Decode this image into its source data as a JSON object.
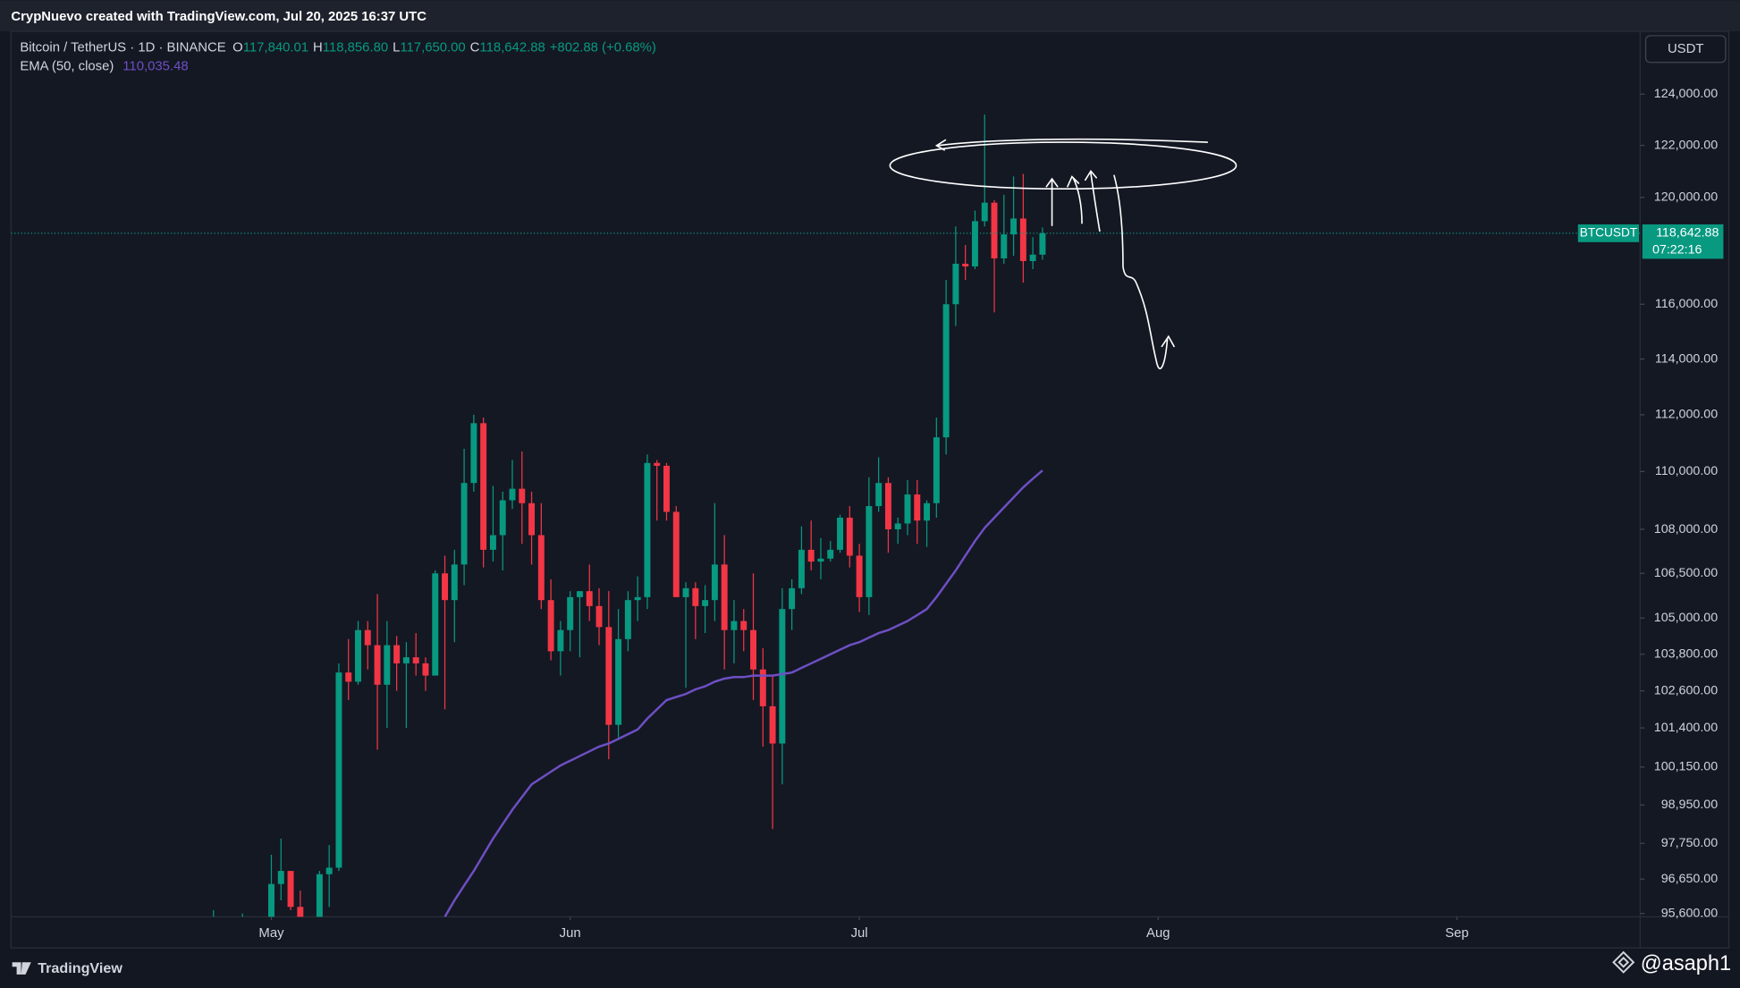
{
  "header": {
    "text": "CrypNuevo created with TradingView.com, Jul 20, 2025 16:37 UTC"
  },
  "legend": {
    "symbol": "Bitcoin / TetherUS · 1D · BINANCE",
    "items": [
      {
        "label": "O",
        "value": "117,840.01"
      },
      {
        "label": "H",
        "value": "118,856.80"
      },
      {
        "label": "L",
        "value": "117,650.00"
      },
      {
        "label": "C",
        "value": "118,642.88"
      }
    ],
    "change": "+802.88 (+0.68%)"
  },
  "currency_button": "USDT",
  "price_tag": {
    "symbol": "BTCUSDT",
    "price": "118,642.88",
    "countdown": "07:22:16"
  },
  "footer": {
    "brand": "TradingView",
    "watermark": "@asaph1"
  },
  "chart_data": {
    "type": "candlestick",
    "log_scale": true,
    "grid": false,
    "up_color": "#089981",
    "down_color": "#f23645",
    "xlim": [
      "2025-04-04",
      "2025-09-20"
    ],
    "xticks": [
      {
        "value": "2025-05-01",
        "label": "May"
      },
      {
        "value": "2025-06-01",
        "label": "Jun"
      },
      {
        "value": "2025-07-01",
        "label": "Jul"
      },
      {
        "value": "2025-08-01",
        "label": "Aug"
      },
      {
        "value": "2025-09-01",
        "label": "Sep"
      }
    ],
    "ylim": [
      95500,
      126500
    ],
    "yticks": [
      {
        "value": 124000,
        "label": "124,000.00"
      },
      {
        "value": 122000,
        "label": "122,000.00"
      },
      {
        "value": 120000,
        "label": "120,000.00"
      },
      {
        "value": 116000,
        "label": "116,000.00"
      },
      {
        "value": 114000,
        "label": "114,000.00"
      },
      {
        "value": 112000,
        "label": "112,000.00"
      },
      {
        "value": 110000,
        "label": "110,000.00"
      },
      {
        "value": 108000,
        "label": "108,000.00"
      },
      {
        "value": 106500,
        "label": "106,500.00"
      },
      {
        "value": 105000,
        "label": "105,000.00"
      },
      {
        "value": 103800,
        "label": "103,800.00"
      },
      {
        "value": 102600,
        "label": "102,600.00"
      },
      {
        "value": 101400,
        "label": "101,400.00"
      },
      {
        "value": 100150,
        "label": "100,150.00"
      },
      {
        "value": 98950,
        "label": "98,950.00"
      },
      {
        "value": 97750,
        "label": "97,750.00"
      },
      {
        "value": 96650,
        "label": "96,650.00"
      },
      {
        "value": 95600,
        "label": "95,600.00"
      }
    ],
    "x": [
      "2025-04-25",
      "2025-04-26",
      "2025-04-27",
      "2025-04-28",
      "2025-04-29",
      "2025-04-30",
      "2025-05-01",
      "2025-05-02",
      "2025-05-03",
      "2025-05-04",
      "2025-05-05",
      "2025-05-06",
      "2025-05-07",
      "2025-05-08",
      "2025-05-09",
      "2025-05-10",
      "2025-05-11",
      "2025-05-12",
      "2025-05-13",
      "2025-05-14",
      "2025-05-15",
      "2025-05-16",
      "2025-05-17",
      "2025-05-18",
      "2025-05-19",
      "2025-05-20",
      "2025-05-21",
      "2025-05-22",
      "2025-05-23",
      "2025-05-24",
      "2025-05-25",
      "2025-05-26",
      "2025-05-27",
      "2025-05-28",
      "2025-05-29",
      "2025-05-30",
      "2025-05-31",
      "2025-06-01",
      "2025-06-02",
      "2025-06-03",
      "2025-06-04",
      "2025-06-05",
      "2025-06-06",
      "2025-06-07",
      "2025-06-08",
      "2025-06-09",
      "2025-06-10",
      "2025-06-11",
      "2025-06-12",
      "2025-06-13",
      "2025-06-14",
      "2025-06-15",
      "2025-06-16",
      "2025-06-17",
      "2025-06-18",
      "2025-06-19",
      "2025-06-20",
      "2025-06-21",
      "2025-06-22",
      "2025-06-23",
      "2025-06-24",
      "2025-06-25",
      "2025-06-26",
      "2025-06-27",
      "2025-06-28",
      "2025-06-29",
      "2025-06-30",
      "2025-07-01",
      "2025-07-02",
      "2025-07-03",
      "2025-07-04",
      "2025-07-05",
      "2025-07-06",
      "2025-07-07",
      "2025-07-08",
      "2025-07-09",
      "2025-07-10",
      "2025-07-11",
      "2025-07-12",
      "2025-07-13",
      "2025-07-14",
      "2025-07-15",
      "2025-07-16",
      "2025-07-17",
      "2025-07-18",
      "2025-07-19",
      "2025-07-20"
    ],
    "open": [
      93900,
      94700,
      94600,
      93700,
      94900,
      94200,
      94200,
      96500,
      96900,
      95800,
      94300,
      94700,
      96800,
      97000,
      103200,
      102900,
      104600,
      104100,
      102800,
      104100,
      103500,
      103700,
      103500,
      103100,
      106500,
      105600,
      106800,
      109600,
      111700,
      107300,
      107800,
      109000,
      109400,
      108900,
      107800,
      105600,
      103900,
      104600,
      105700,
      105900,
      105400,
      104700,
      101500,
      104300,
      105600,
      105700,
      110300,
      110200,
      108600,
      105700,
      106000,
      105400,
      105600,
      106800,
      104600,
      104900,
      104600,
      103300,
      102100,
      100900,
      105300,
      106000,
      107300,
      106900,
      107000,
      107300,
      108400,
      107100,
      105700,
      108800,
      109600,
      108000,
      108200,
      109200,
      108300,
      108900,
      111200,
      116000,
      117500,
      117400,
      119100,
      119800,
      117700,
      118600,
      119200,
      117600,
      117840.01
    ],
    "high": [
      95700,
      95300,
      95300,
      95600,
      95500,
      95400,
      97400,
      97900,
      96900,
      96300,
      95200,
      96900,
      97700,
      103500,
      104300,
      104900,
      104900,
      105800,
      104900,
      104400,
      104200,
      104500,
      103700,
      106600,
      107100,
      107300,
      110800,
      112000,
      111900,
      109500,
      109300,
      110400,
      110700,
      109300,
      108900,
      106300,
      104900,
      105900,
      105900,
      106800,
      106000,
      105900,
      105300,
      105900,
      106400,
      110600,
      110400,
      110300,
      108800,
      106200,
      106200,
      106100,
      108900,
      107800,
      105600,
      105300,
      106500,
      104000,
      103100,
      106000,
      106300,
      108100,
      108300,
      107700,
      107600,
      108500,
      108800,
      107500,
      109800,
      110500,
      109800,
      108400,
      109700,
      109700,
      109000,
      111900,
      116900,
      118900,
      118200,
      119500,
      123200,
      119900,
      120100,
      120800,
      120900,
      118500,
      118856.8
    ],
    "low": [
      92800,
      93800,
      93000,
      92800,
      93700,
      92900,
      94100,
      96000,
      95700,
      94100,
      93500,
      93400,
      95800,
      96900,
      102300,
      102800,
      103300,
      100700,
      101400,
      102600,
      101400,
      103100,
      102600,
      103100,
      102000,
      104200,
      106100,
      109300,
      106700,
      106900,
      106600,
      108700,
      107500,
      106800,
      105300,
      103600,
      103100,
      103900,
      103700,
      104900,
      104100,
      100400,
      101100,
      103900,
      104900,
      105300,
      108300,
      108300,
      105700,
      102700,
      104300,
      104500,
      104900,
      103300,
      103500,
      103900,
      102300,
      100800,
      98200,
      99600,
      104600,
      105800,
      106600,
      106300,
      106900,
      107200,
      106700,
      105200,
      105100,
      108600,
      107200,
      107500,
      107800,
      107500,
      107400,
      108400,
      110600,
      115200,
      116900,
      117300,
      118900,
      115700,
      117500,
      117800,
      116800,
      117300,
      117650.0
    ],
    "close": [
      94700,
      94600,
      93700,
      94900,
      94200,
      94200,
      96500,
      96900,
      95800,
      94300,
      94700,
      96800,
      97000,
      103200,
      102900,
      104600,
      104100,
      102800,
      104100,
      103500,
      103700,
      103500,
      103100,
      106500,
      105600,
      106800,
      109600,
      111700,
      107300,
      107800,
      109000,
      109400,
      108900,
      107800,
      105600,
      103900,
      104600,
      105700,
      105900,
      105400,
      104700,
      101500,
      104300,
      105600,
      105700,
      110300,
      110200,
      108600,
      105700,
      106000,
      105400,
      105600,
      106800,
      104600,
      104900,
      104600,
      103300,
      102100,
      100900,
      105300,
      106000,
      107300,
      106900,
      107000,
      107300,
      108400,
      107100,
      105700,
      108800,
      109600,
      108000,
      108200,
      109200,
      108300,
      108900,
      111200,
      116000,
      117500,
      117400,
      119100,
      119800,
      117700,
      118600,
      119200,
      117600,
      117840.01,
      118642.88
    ],
    "series": [
      {
        "name": "EMA (50, close)",
        "color": "#6e4fc4",
        "value_label": "110,035.48",
        "values": [
          null,
          null,
          null,
          null,
          null,
          null,
          null,
          null,
          null,
          null,
          null,
          null,
          null,
          null,
          null,
          null,
          null,
          null,
          null,
          null,
          null,
          null,
          null,
          null,
          95500,
          96000,
          96450,
          96900,
          97400,
          97900,
          98350,
          98800,
          99200,
          99600,
          99800,
          100000,
          100200,
          100350,
          100500,
          100650,
          100800,
          100900,
          101050,
          101200,
          101350,
          101700,
          102000,
          102300,
          102400,
          102500,
          102650,
          102750,
          102900,
          103000,
          103050,
          103050,
          103100,
          103100,
          103100,
          103150,
          103200,
          103350,
          103500,
          103650,
          103800,
          103950,
          104100,
          104200,
          104350,
          104500,
          104600,
          104750,
          104900,
          105100,
          105300,
          105700,
          106150,
          106600,
          107100,
          107600,
          108050,
          108400,
          108750,
          109100,
          109450,
          109750,
          110035.48
        ]
      }
    ]
  }
}
